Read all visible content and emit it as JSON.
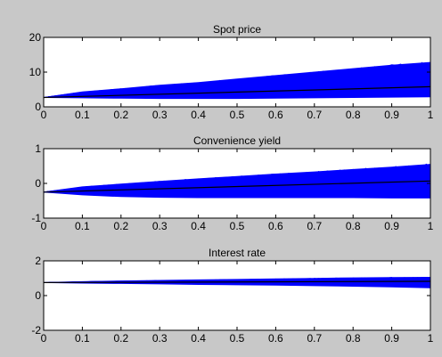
{
  "figure": {
    "background": "#c8c8c8",
    "plot_background": "#ffffff"
  },
  "chart_data": [
    {
      "type": "line",
      "title": "Spot price",
      "xlabel": "",
      "ylabel": "",
      "xlim": [
        0,
        1
      ],
      "ylim": [
        0,
        20
      ],
      "xticks": [
        0,
        0.1,
        0.2,
        0.3,
        0.4,
        0.5,
        0.6,
        0.7,
        0.8,
        0.9,
        1
      ],
      "yticks": [
        0,
        10,
        20
      ],
      "grid": false,
      "series": [
        {
          "role": "simulated paths envelope",
          "color": "#0000ff",
          "x": [
            0,
            0.1,
            0.2,
            0.3,
            0.4,
            0.5,
            0.6,
            0.7,
            0.8,
            0.9,
            1
          ],
          "lower": [
            2.7,
            2.6,
            2.5,
            2.4,
            2.4,
            2.4,
            2.5,
            2.6,
            2.7,
            2.8,
            2.9
          ],
          "upper": [
            2.7,
            4.3,
            5.2,
            6.2,
            7.0,
            8.0,
            9.0,
            10.0,
            11.0,
            12.0,
            12.8
          ]
        },
        {
          "role": "mean path",
          "color": "#000000",
          "x": [
            0,
            1
          ],
          "values": [
            2.7,
            5.8
          ]
        }
      ]
    },
    {
      "type": "line",
      "title": "Convenience yield",
      "xlabel": "",
      "ylabel": "",
      "xlim": [
        0,
        1
      ],
      "ylim": [
        -1,
        1
      ],
      "xticks": [
        0,
        0.1,
        0.2,
        0.3,
        0.4,
        0.5,
        0.6,
        0.7,
        0.8,
        0.9,
        1
      ],
      "yticks": [
        -1,
        0,
        1
      ],
      "grid": false,
      "series": [
        {
          "role": "simulated paths envelope",
          "color": "#0000ff",
          "x": [
            0,
            0.1,
            0.2,
            0.3,
            0.4,
            0.5,
            0.6,
            0.7,
            0.8,
            0.9,
            1
          ],
          "lower": [
            -0.25,
            -0.33,
            -0.38,
            -0.4,
            -0.41,
            -0.41,
            -0.41,
            -0.41,
            -0.41,
            -0.42,
            -0.42
          ],
          "upper": [
            -0.25,
            -0.1,
            -0.02,
            0.06,
            0.13,
            0.2,
            0.27,
            0.33,
            0.4,
            0.47,
            0.55
          ]
        },
        {
          "role": "mean path",
          "color": "#000000",
          "x": [
            0,
            1
          ],
          "values": [
            -0.25,
            0.07
          ]
        }
      ]
    },
    {
      "type": "line",
      "title": "Interest rate",
      "xlabel": "",
      "ylabel": "",
      "xlim": [
        0,
        1
      ],
      "ylim": [
        -2,
        2
      ],
      "xticks": [
        0,
        0.1,
        0.2,
        0.3,
        0.4,
        0.5,
        0.6,
        0.7,
        0.8,
        0.9,
        1
      ],
      "yticks": [
        -2,
        0,
        2
      ],
      "grid": false,
      "series": [
        {
          "role": "simulated paths envelope",
          "color": "#0000ff",
          "x": [
            0,
            0.1,
            0.2,
            0.3,
            0.4,
            0.5,
            0.6,
            0.7,
            0.8,
            0.9,
            1
          ],
          "lower": [
            0.75,
            0.72,
            0.7,
            0.67,
            0.64,
            0.62,
            0.6,
            0.57,
            0.54,
            0.5,
            0.45
          ],
          "upper": [
            0.75,
            0.8,
            0.84,
            0.87,
            0.9,
            0.93,
            0.96,
            0.99,
            1.02,
            1.04,
            1.05
          ]
        },
        {
          "role": "mean path",
          "color": "#000000",
          "x": [
            0,
            1
          ],
          "values": [
            0.75,
            0.82
          ]
        }
      ]
    }
  ]
}
